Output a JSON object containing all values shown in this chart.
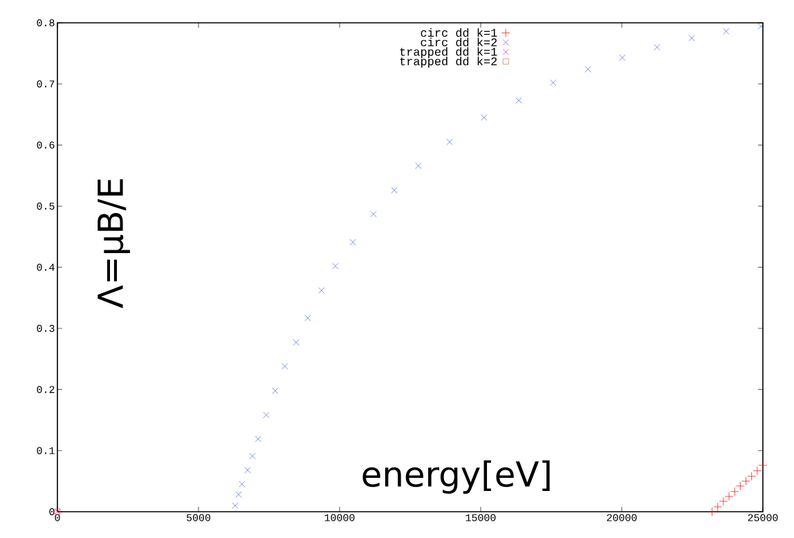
{
  "chart_data": {
    "type": "scatter",
    "xlabel": "energy[eV]",
    "ylabel": "Λ=μB/E",
    "xlim": [
      0,
      25000
    ],
    "ylim": [
      0,
      0.8
    ],
    "xticks": [
      0,
      5000,
      10000,
      15000,
      20000,
      25000
    ],
    "yticks": [
      0,
      0.1,
      0.2,
      0.3,
      0.4,
      0.5,
      0.6,
      0.7,
      0.8
    ],
    "legend": "top",
    "series": [
      {
        "name": "circ dd k=1",
        "color": "#ff0000",
        "marker": "plus",
        "x": [
          23200,
          23400,
          23600,
          23800,
          24000,
          24200,
          24400,
          24600,
          24800,
          25000
        ],
        "values": [
          0.0,
          0.008,
          0.017,
          0.025,
          0.033,
          0.042,
          0.05,
          0.058,
          0.067,
          0.076
        ]
      },
      {
        "name": "circ dd k=2",
        "color": "#4060ff",
        "marker": "cross",
        "x": [
          6300,
          6420,
          6540,
          6740,
          6910,
          7110,
          7400,
          7720,
          8060,
          8460,
          8870,
          9360,
          9850,
          10470,
          11200,
          11940,
          12790,
          13900,
          15120,
          16350,
          17570,
          18800,
          20020,
          21250,
          22480,
          23700,
          24930
        ],
        "values": [
          0.01,
          0.028,
          0.045,
          0.068,
          0.091,
          0.119,
          0.158,
          0.198,
          0.238,
          0.277,
          0.317,
          0.362,
          0.402,
          0.441,
          0.487,
          0.526,
          0.566,
          0.605,
          0.645,
          0.673,
          0.702,
          0.724,
          0.743,
          0.76,
          0.775,
          0.786,
          0.794
        ]
      },
      {
        "name": "trapped dd k=1",
        "color": "#ff00ff",
        "marker": "cross",
        "x": [
          0
        ],
        "values": [
          0
        ]
      },
      {
        "name": "trapped dd k=2",
        "color": "#c07040",
        "marker": "square",
        "x": [
          0
        ],
        "values": [
          0
        ]
      }
    ]
  }
}
